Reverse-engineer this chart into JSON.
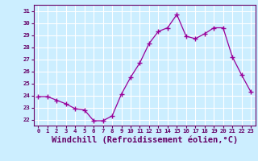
{
  "x": [
    0,
    1,
    2,
    3,
    4,
    5,
    6,
    7,
    8,
    9,
    10,
    11,
    12,
    13,
    14,
    15,
    16,
    17,
    18,
    19,
    20,
    21,
    22,
    23
  ],
  "y": [
    23.9,
    23.9,
    23.6,
    23.3,
    22.9,
    22.8,
    21.9,
    21.9,
    22.3,
    24.1,
    25.5,
    26.7,
    28.3,
    29.3,
    29.6,
    30.7,
    28.9,
    28.7,
    29.1,
    29.6,
    29.6,
    27.2,
    25.7,
    24.3
  ],
  "line_color": "#990099",
  "marker": "+",
  "marker_size": 4,
  "xlabel": "Windchill (Refroidissement éolien,°C)",
  "xlabel_fontsize": 7.5,
  "bg_color": "#cceeff",
  "grid_color": "#ffffff",
  "tick_label_color": "#660066",
  "axis_label_color": "#660066",
  "ylim": [
    21.5,
    31.5
  ],
  "xlim": [
    -0.5,
    23.5
  ],
  "yticks": [
    22,
    23,
    24,
    25,
    26,
    27,
    28,
    29,
    30,
    31
  ],
  "xticks": [
    0,
    1,
    2,
    3,
    4,
    5,
    6,
    7,
    8,
    9,
    10,
    11,
    12,
    13,
    14,
    15,
    16,
    17,
    18,
    19,
    20,
    21,
    22,
    23
  ],
  "xtick_labels": [
    "0",
    "1",
    "2",
    "3",
    "4",
    "5",
    "6",
    "7",
    "8",
    "9",
    "10",
    "11",
    "12",
    "13",
    "14",
    "15",
    "16",
    "17",
    "18",
    "19",
    "20",
    "21",
    "22",
    "23"
  ],
  "ytick_labels": [
    "22",
    "23",
    "24",
    "25",
    "26",
    "27",
    "28",
    "29",
    "30",
    "31"
  ]
}
